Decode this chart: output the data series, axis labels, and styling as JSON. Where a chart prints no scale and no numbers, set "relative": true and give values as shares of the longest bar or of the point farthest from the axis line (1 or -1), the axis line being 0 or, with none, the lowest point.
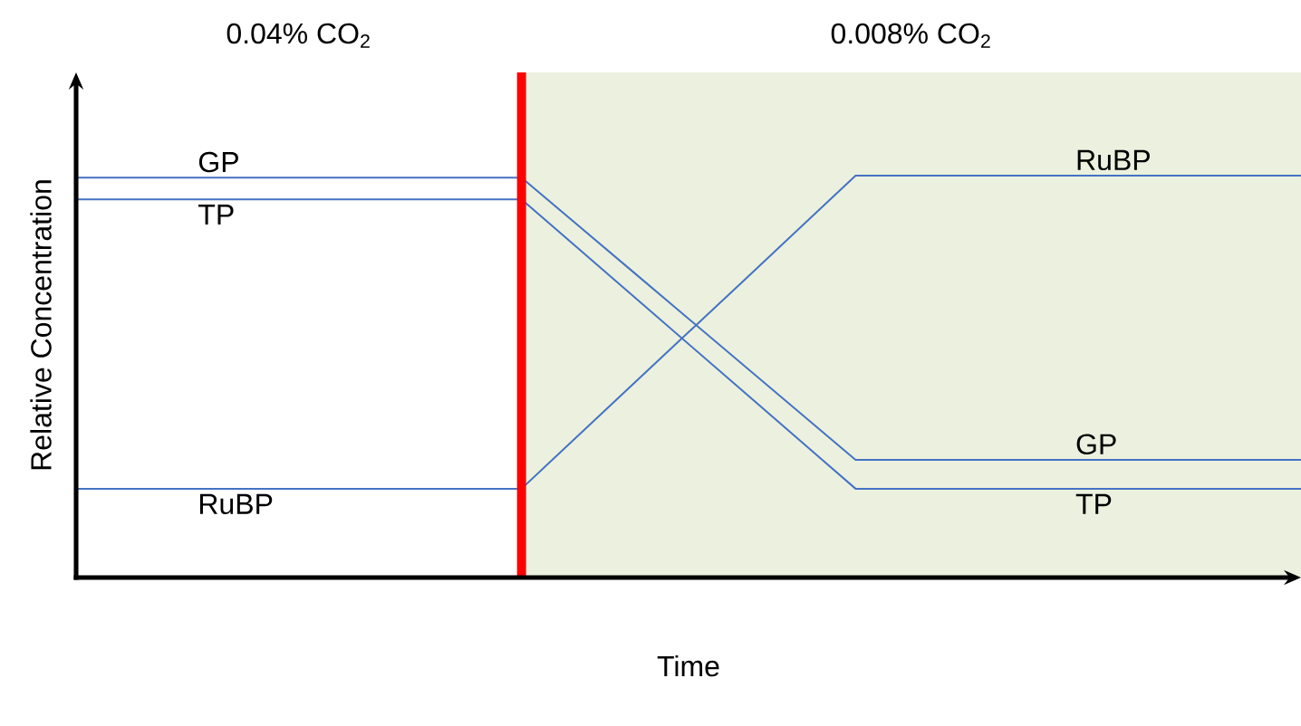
{
  "chart_data": {
    "type": "line",
    "relative": true,
    "categories": [
      null,
      null,
      null,
      null,
      null,
      null,
      null,
      null,
      null,
      null,
      null,
      null
    ],
    "series": [
      {
        "name": "GP",
        "color": "#4472c4",
        "values": [
          0.995,
          0.995,
          0.995,
          0.995,
          0.995,
          0.761,
          0.527,
          0.293,
          0.293,
          0.293,
          0.293,
          0.293
        ]
      },
      {
        "name": "TP",
        "color": "#4472c4",
        "values": [
          0.941,
          0.941,
          0.941,
          0.941,
          0.941,
          0.701,
          0.461,
          0.221,
          0.221,
          0.221,
          0.221,
          0.221
        ]
      },
      {
        "name": "RuBP",
        "color": "#4472c4",
        "values": [
          0.221,
          0.221,
          0.221,
          0.221,
          0.221,
          0.481,
          0.74,
          1,
          1,
          1,
          1,
          1
        ]
      }
    ],
    "annotations": [
      "0.04% CO$_{2}$",
      "0.008% CO$_{2}$"
    ],
    "xlabel": "Time",
    "ylabel": "Relative Concentration"
  }
}
